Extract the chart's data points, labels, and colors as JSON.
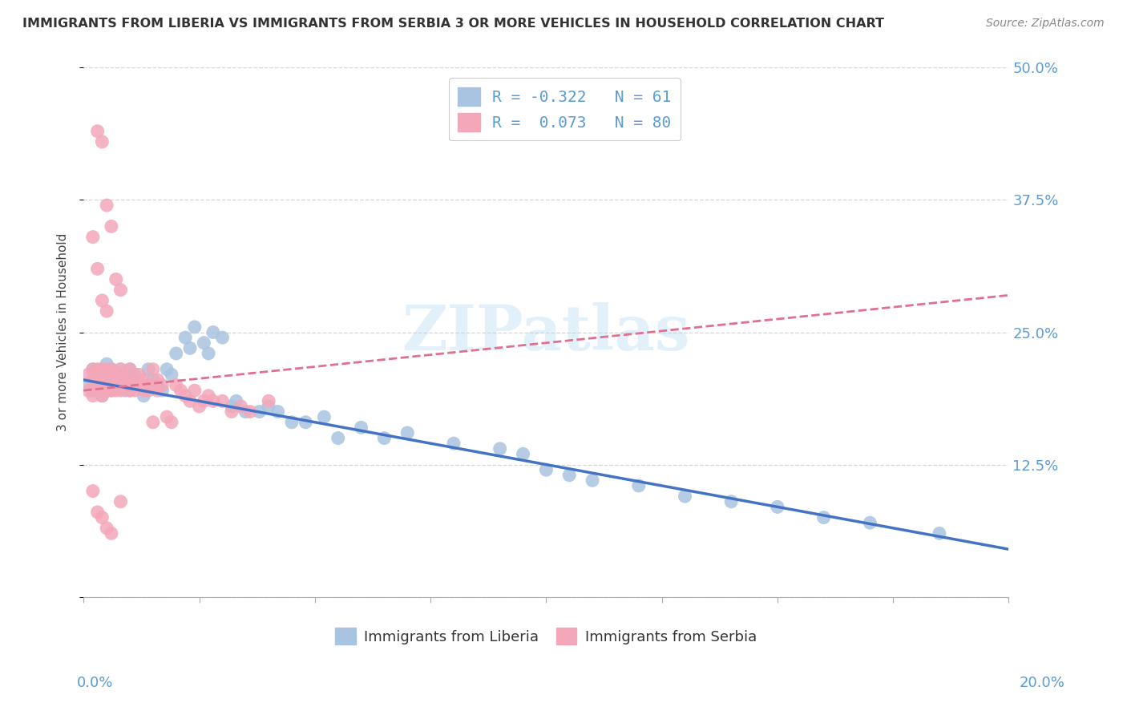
{
  "title": "IMMIGRANTS FROM LIBERIA VS IMMIGRANTS FROM SERBIA 3 OR MORE VEHICLES IN HOUSEHOLD CORRELATION CHART",
  "source": "Source: ZipAtlas.com",
  "ylabel": "3 or more Vehicles in Household",
  "liberia_color": "#a8c4e0",
  "serbia_color": "#f4a7b9",
  "liberia_line_color": "#4472c4",
  "serbia_line_color": "#e07090",
  "watermark_color": "#d0e8f5",
  "legend_text_color": "#5b9bd5",
  "right_tick_color": "#5b9bd5",
  "xmin": 0.0,
  "xmax": 0.2,
  "ymin": 0.0,
  "ymax": 0.5,
  "ytick_vals": [
    0.0,
    0.125,
    0.25,
    0.375,
    0.5
  ],
  "ytick_labels": [
    "",
    "12.5%",
    "25.0%",
    "37.5%",
    "50.0%"
  ],
  "liberia_R": -0.322,
  "liberia_N": 61,
  "serbia_R": 0.073,
  "serbia_N": 80,
  "lib_trend_x0": 0.0,
  "lib_trend_y0": 0.205,
  "lib_trend_x1": 0.2,
  "lib_trend_y1": 0.045,
  "serb_trend_x0": 0.0,
  "serb_trend_y0": 0.195,
  "serb_trend_x1": 0.2,
  "serb_trend_y1": 0.285,
  "liberia_x": [
    0.001,
    0.002,
    0.002,
    0.003,
    0.003,
    0.004,
    0.004,
    0.005,
    0.005,
    0.006,
    0.006,
    0.007,
    0.007,
    0.008,
    0.008,
    0.009,
    0.01,
    0.01,
    0.011,
    0.012,
    0.013,
    0.014,
    0.015,
    0.016,
    0.017,
    0.018,
    0.019,
    0.02,
    0.022,
    0.023,
    0.024,
    0.026,
    0.027,
    0.028,
    0.03,
    0.032,
    0.033,
    0.035,
    0.038,
    0.04,
    0.042,
    0.045,
    0.048,
    0.052,
    0.055,
    0.06,
    0.065,
    0.07,
    0.08,
    0.09,
    0.095,
    0.1,
    0.105,
    0.11,
    0.12,
    0.13,
    0.14,
    0.15,
    0.16,
    0.17,
    0.185
  ],
  "liberia_y": [
    0.2,
    0.215,
    0.195,
    0.205,
    0.21,
    0.19,
    0.215,
    0.2,
    0.22,
    0.195,
    0.215,
    0.21,
    0.205,
    0.2,
    0.215,
    0.195,
    0.215,
    0.205,
    0.21,
    0.2,
    0.19,
    0.215,
    0.205,
    0.2,
    0.195,
    0.215,
    0.21,
    0.23,
    0.245,
    0.235,
    0.255,
    0.24,
    0.23,
    0.25,
    0.245,
    0.18,
    0.185,
    0.175,
    0.175,
    0.18,
    0.175,
    0.165,
    0.165,
    0.17,
    0.15,
    0.16,
    0.15,
    0.155,
    0.145,
    0.14,
    0.135,
    0.12,
    0.115,
    0.11,
    0.105,
    0.095,
    0.09,
    0.085,
    0.075,
    0.07,
    0.06
  ],
  "serbia_x": [
    0.001,
    0.001,
    0.002,
    0.002,
    0.002,
    0.003,
    0.003,
    0.003,
    0.003,
    0.004,
    0.004,
    0.004,
    0.004,
    0.005,
    0.005,
    0.005,
    0.005,
    0.006,
    0.006,
    0.006,
    0.006,
    0.007,
    0.007,
    0.007,
    0.008,
    0.008,
    0.008,
    0.009,
    0.009,
    0.01,
    0.01,
    0.01,
    0.011,
    0.011,
    0.012,
    0.012,
    0.013,
    0.013,
    0.014,
    0.014,
    0.015,
    0.015,
    0.016,
    0.016,
    0.017,
    0.018,
    0.019,
    0.02,
    0.021,
    0.022,
    0.023,
    0.024,
    0.025,
    0.026,
    0.027,
    0.028,
    0.03,
    0.032,
    0.034,
    0.036,
    0.003,
    0.004,
    0.005,
    0.006,
    0.007,
    0.008,
    0.002,
    0.003,
    0.004,
    0.005,
    0.006,
    0.008,
    0.01,
    0.012,
    0.015,
    0.002,
    0.003,
    0.004,
    0.005,
    0.04
  ],
  "serbia_y": [
    0.21,
    0.195,
    0.205,
    0.215,
    0.19,
    0.2,
    0.215,
    0.205,
    0.195,
    0.21,
    0.2,
    0.19,
    0.215,
    0.205,
    0.195,
    0.215,
    0.2,
    0.21,
    0.195,
    0.205,
    0.215,
    0.2,
    0.195,
    0.205,
    0.21,
    0.195,
    0.215,
    0.2,
    0.205,
    0.195,
    0.215,
    0.2,
    0.205,
    0.195,
    0.21,
    0.2,
    0.195,
    0.205,
    0.2,
    0.195,
    0.215,
    0.2,
    0.205,
    0.195,
    0.2,
    0.17,
    0.165,
    0.2,
    0.195,
    0.19,
    0.185,
    0.195,
    0.18,
    0.185,
    0.19,
    0.185,
    0.185,
    0.175,
    0.18,
    0.175,
    0.44,
    0.43,
    0.37,
    0.35,
    0.3,
    0.29,
    0.1,
    0.08,
    0.075,
    0.065,
    0.06,
    0.09,
    0.195,
    0.2,
    0.165,
    0.34,
    0.31,
    0.28,
    0.27,
    0.185
  ]
}
